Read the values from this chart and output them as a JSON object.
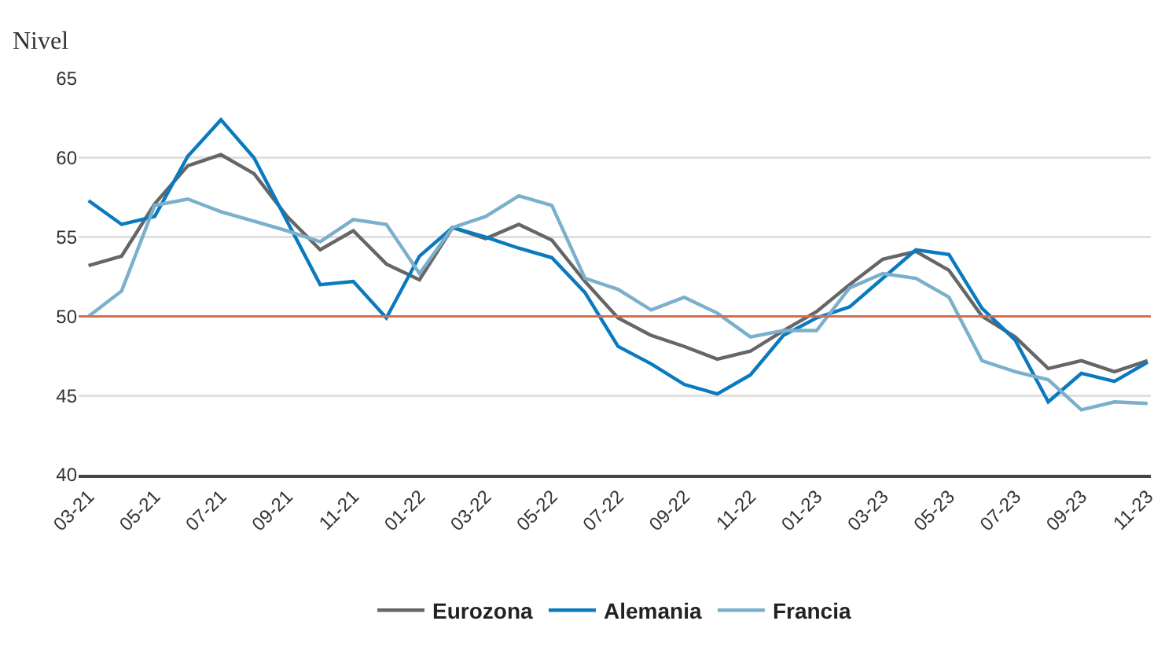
{
  "chart_data": {
    "type": "line",
    "ylabel": "Nivel",
    "categories": [
      "03-21",
      null,
      "05-21",
      null,
      "07-21",
      null,
      "09-21",
      null,
      "11-21",
      null,
      "01-22",
      null,
      "03-22",
      null,
      "05-22",
      null,
      "07-22",
      null,
      "09-22",
      null,
      "11-22",
      null,
      "01-23",
      null,
      "03-23",
      null,
      "05-23",
      null,
      "07-23",
      null,
      "09-23",
      null,
      "11-23"
    ],
    "series": [
      {
        "name": "Eurozona",
        "color": "#666666",
        "values": [
          53.2,
          53.8,
          57.1,
          59.5,
          60.2,
          59.0,
          56.3,
          54.2,
          55.4,
          53.3,
          52.3,
          55.6,
          54.9,
          55.8,
          54.8,
          52.2,
          49.9,
          48.8,
          48.1,
          47.3,
          47.8,
          49.1,
          50.3,
          52.0,
          53.6,
          54.1,
          52.9,
          50.0,
          48.7,
          46.7,
          47.2,
          46.5,
          47.2
        ]
      },
      {
        "name": "Alemania",
        "color": "#0a7abf",
        "values": [
          57.3,
          55.8,
          56.3,
          60.1,
          62.4,
          60.0,
          56.0,
          52.0,
          52.2,
          49.9,
          53.8,
          55.6,
          55.0,
          54.3,
          53.7,
          51.5,
          48.1,
          47.0,
          45.7,
          45.1,
          46.3,
          48.8,
          49.9,
          50.6,
          52.4,
          54.2,
          53.9,
          50.5,
          48.5,
          44.6,
          46.4,
          45.9,
          47.1
        ]
      },
      {
        "name": "Francia",
        "color": "#7ab0cc",
        "values": [
          50.0,
          51.6,
          57.0,
          57.4,
          56.6,
          56.0,
          55.4,
          54.7,
          56.1,
          55.8,
          52.7,
          55.6,
          56.3,
          57.6,
          57.0,
          52.4,
          51.7,
          50.4,
          51.2,
          50.2,
          48.7,
          49.1,
          49.1,
          51.8,
          52.7,
          52.4,
          51.2,
          47.2,
          46.5,
          46.0,
          44.1,
          44.6,
          44.5
        ]
      }
    ],
    "ylim": [
      40,
      65
    ],
    "yticks": [
      40,
      45,
      50,
      55,
      60,
      65
    ],
    "grid": "y",
    "legend": "bottom",
    "marker": "none",
    "line_style": "solid",
    "ref_lines": [
      {
        "axis": "y",
        "value": 50,
        "color": "#d0704f"
      }
    ]
  }
}
